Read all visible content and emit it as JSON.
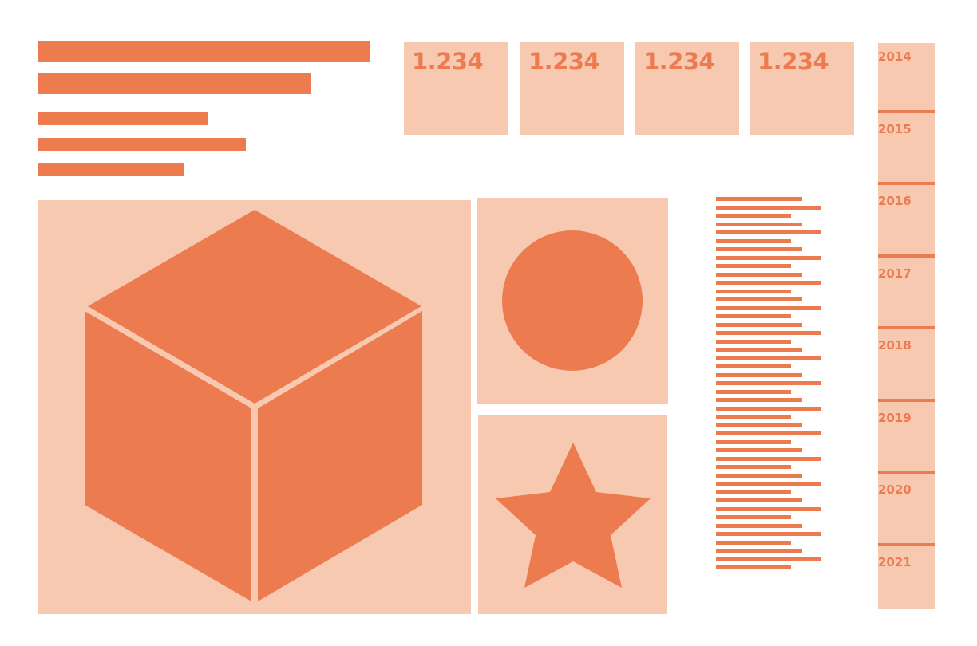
{
  "colors": {
    "accent": "#ec7c50",
    "panel": "#f7c9b1",
    "background": "#ffffff"
  },
  "summary_bars": {
    "values": [
      1.0,
      0.82,
      0.51,
      0.625,
      0.44
    ]
  },
  "kpi_cards": [
    {
      "value": "1.234"
    },
    {
      "value": "1.234"
    },
    {
      "value": "1.234"
    },
    {
      "value": "1.234"
    }
  ],
  "shapes": {
    "main": {
      "icon": "cube-icon"
    },
    "top_right": {
      "icon": "circle-icon"
    },
    "bottom_right": {
      "icon": "star-icon"
    }
  },
  "line_list": {
    "pattern": [
      0.82,
      1.0,
      0.71,
      0.82,
      1.0,
      0.71
    ],
    "count": 45
  },
  "timeline": {
    "years": [
      "2014",
      "2015",
      "2016",
      "2017",
      "2018",
      "2019",
      "2020",
      "2021"
    ]
  }
}
